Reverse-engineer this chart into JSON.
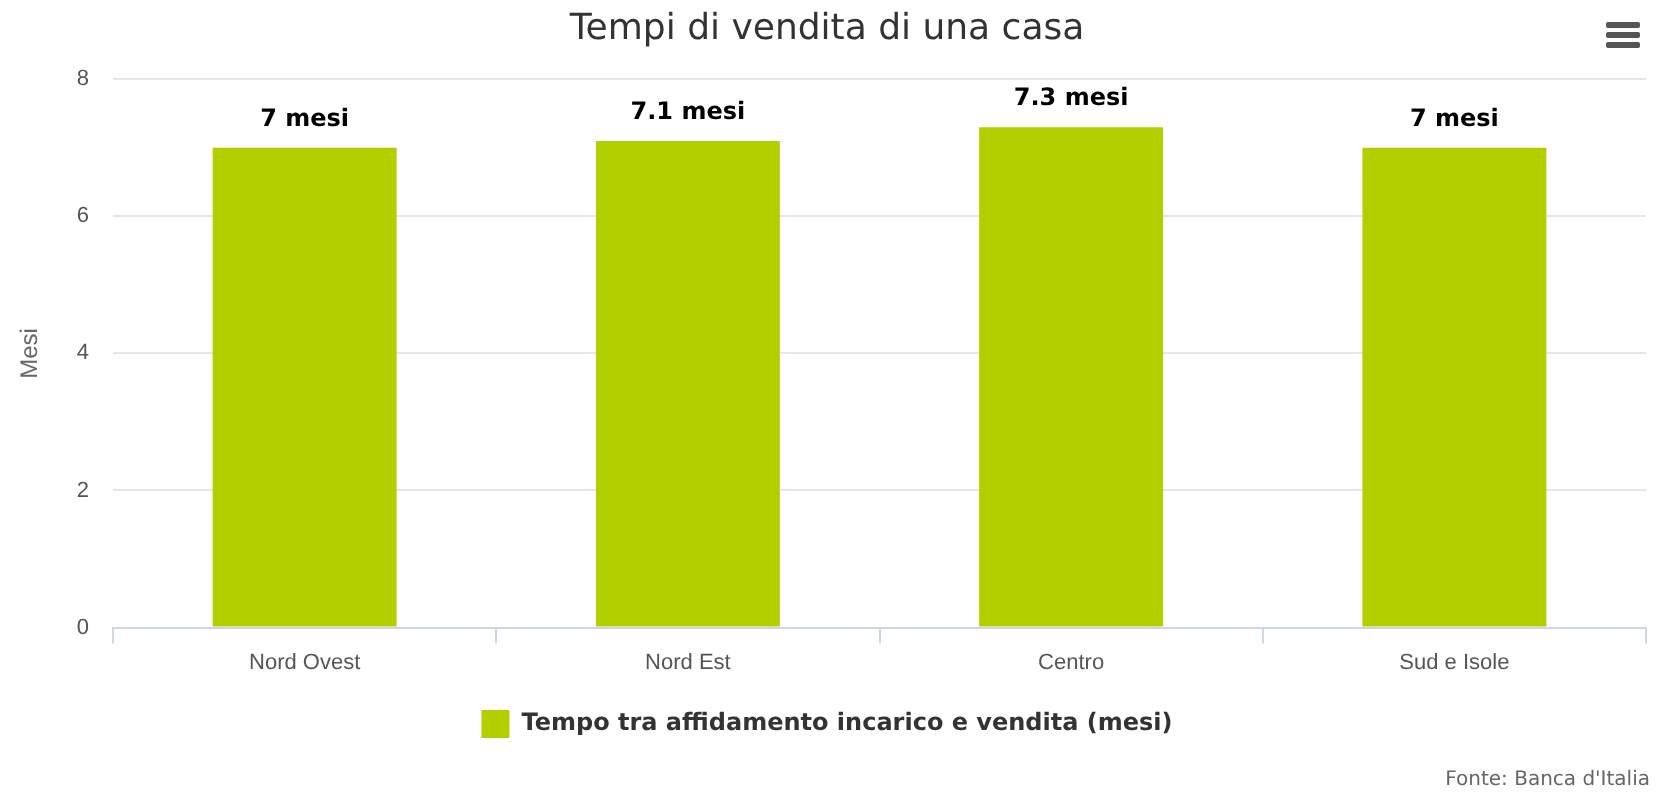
{
  "chart_data": {
    "type": "bar",
    "title": "Tempi di vendita di una casa",
    "ylabel": "Mesi",
    "categories": [
      "Nord Ovest",
      "Nord Est",
      "Centro",
      "Sud e Isole"
    ],
    "series": [
      {
        "name": "Tempo tra affidamento incarico e vendita (mesi)",
        "color": "#b2d000",
        "values": [
          7,
          7.1,
          7.3,
          7
        ],
        "value_labels": [
          "7 mesi",
          "7.1 mesi",
          "7.3 mesi",
          "7 mesi"
        ]
      }
    ],
    "ylim": [
      0,
      8
    ],
    "yticks": [
      0,
      2,
      4,
      6,
      8
    ],
    "grid": "y",
    "legend": "bottom",
    "annotations": [
      "Fonte: Banca d'Italia"
    ]
  }
}
